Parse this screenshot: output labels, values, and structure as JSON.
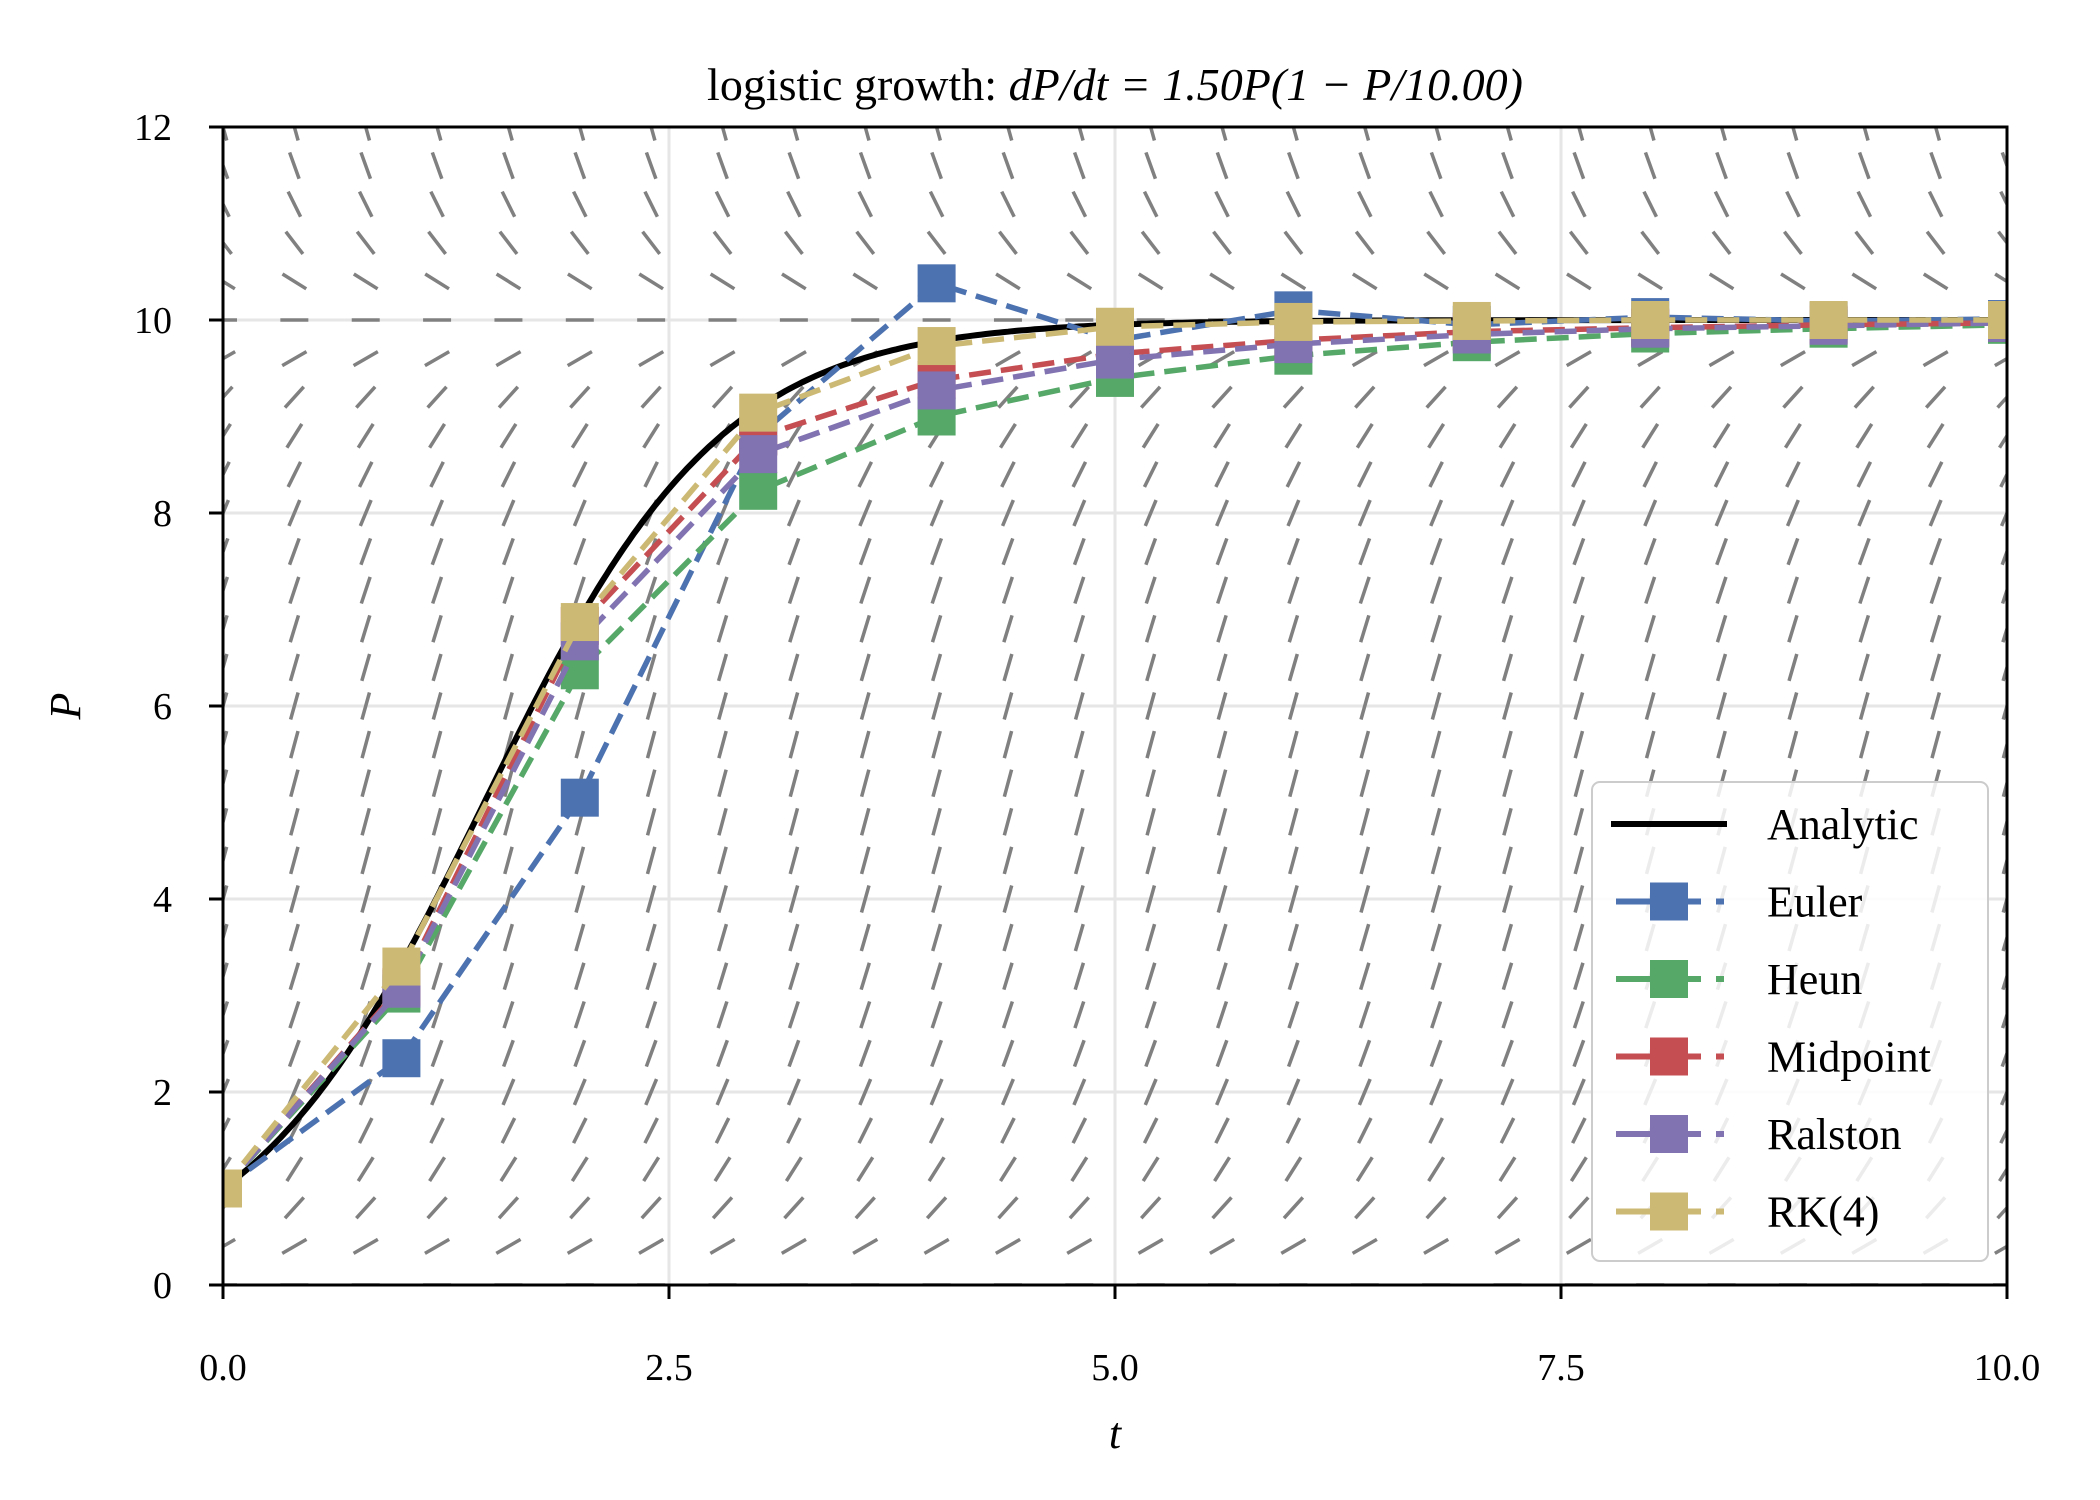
{
  "chart_data": {
    "type": "line",
    "title_prefix": "logistic growth: ",
    "title_math": "dP/dt = 1.50P(1 − P/10.00)",
    "xlabel": "t",
    "ylabel": "P",
    "xlim": [
      0,
      10
    ],
    "ylim": [
      0,
      12
    ],
    "xticks": [
      "0.0",
      "2.5",
      "5.0",
      "7.5",
      "10.0"
    ],
    "xtick_values": [
      0,
      2.5,
      5,
      7.5,
      10
    ],
    "yticks": [
      "0",
      "2",
      "4",
      "6",
      "8",
      "10",
      "12"
    ],
    "ytick_values": [
      0,
      2,
      4,
      6,
      8,
      10,
      12
    ],
    "grid": true,
    "legend_position": "lower-right",
    "model": {
      "r": 1.5,
      "K": 10,
      "P0": 1
    },
    "slope_field": {
      "t_step": 0.4,
      "P_step": 0.4,
      "color": "#808080"
    },
    "analytic": {
      "name": "Analytic",
      "color": "#000000"
    },
    "x": [
      0,
      1,
      2,
      3,
      4,
      5,
      6,
      7,
      8,
      9,
      10
    ],
    "series": [
      {
        "name": "Euler",
        "color": "#4C72B0",
        "values": [
          1.0,
          2.35,
          5.05,
          8.8,
          10.38,
          9.79,
          10.1,
          9.95,
          10.03,
          9.99,
          10.01
        ]
      },
      {
        "name": "Heun",
        "color": "#55A868",
        "values": [
          1.0,
          3.02,
          6.37,
          8.23,
          9.0,
          9.4,
          9.63,
          9.77,
          9.86,
          9.91,
          9.95
        ]
      },
      {
        "name": "Midpoint",
        "color": "#C44E52",
        "values": [
          1.0,
          3.09,
          6.83,
          8.79,
          9.38,
          9.65,
          9.79,
          9.88,
          9.92,
          9.95,
          9.97
        ]
      },
      {
        "name": "Ralston",
        "color": "#8172B2",
        "values": [
          1.0,
          3.07,
          6.67,
          8.61,
          9.27,
          9.59,
          9.75,
          9.85,
          9.91,
          9.94,
          9.97
        ]
      },
      {
        "name": "RK(4)",
        "color": "#CCB974",
        "values": [
          1.0,
          3.3,
          6.87,
          9.04,
          9.73,
          9.93,
          9.98,
          9.99,
          10.0,
          10.0,
          10.0
        ]
      }
    ]
  }
}
